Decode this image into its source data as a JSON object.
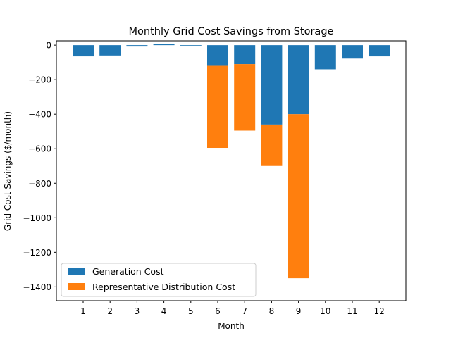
{
  "chart_data": {
    "type": "bar",
    "stacked": true,
    "title": "Monthly Grid Cost Savings from Storage",
    "xlabel": "Month",
    "ylabel": "Grid Cost Savings ($/month)",
    "categories": [
      "1",
      "2",
      "3",
      "4",
      "5",
      "6",
      "7",
      "8",
      "9",
      "10",
      "11",
      "12"
    ],
    "series": [
      {
        "name": "Generation Cost",
        "color": "#1f77b4",
        "values": [
          -65,
          -60,
          -8,
          5,
          -3,
          -120,
          -110,
          -460,
          -400,
          -140,
          -78,
          -65
        ]
      },
      {
        "name": "Representative Distribution Cost",
        "color": "#ff7f0e",
        "values": [
          0,
          0,
          0,
          0,
          0,
          -475,
          -385,
          -240,
          -950,
          0,
          0,
          0
        ]
      }
    ],
    "ylim": [
      -1480,
      25
    ],
    "yticks": [
      0,
      -200,
      -400,
      -600,
      -800,
      -1000,
      -1200,
      -1400
    ],
    "ytick_labels": [
      "0",
      "−200",
      "−400",
      "−600",
      "−800",
      "−1000",
      "−1200",
      "−1400"
    ],
    "grid": false,
    "legend_position": "lower-left"
  }
}
